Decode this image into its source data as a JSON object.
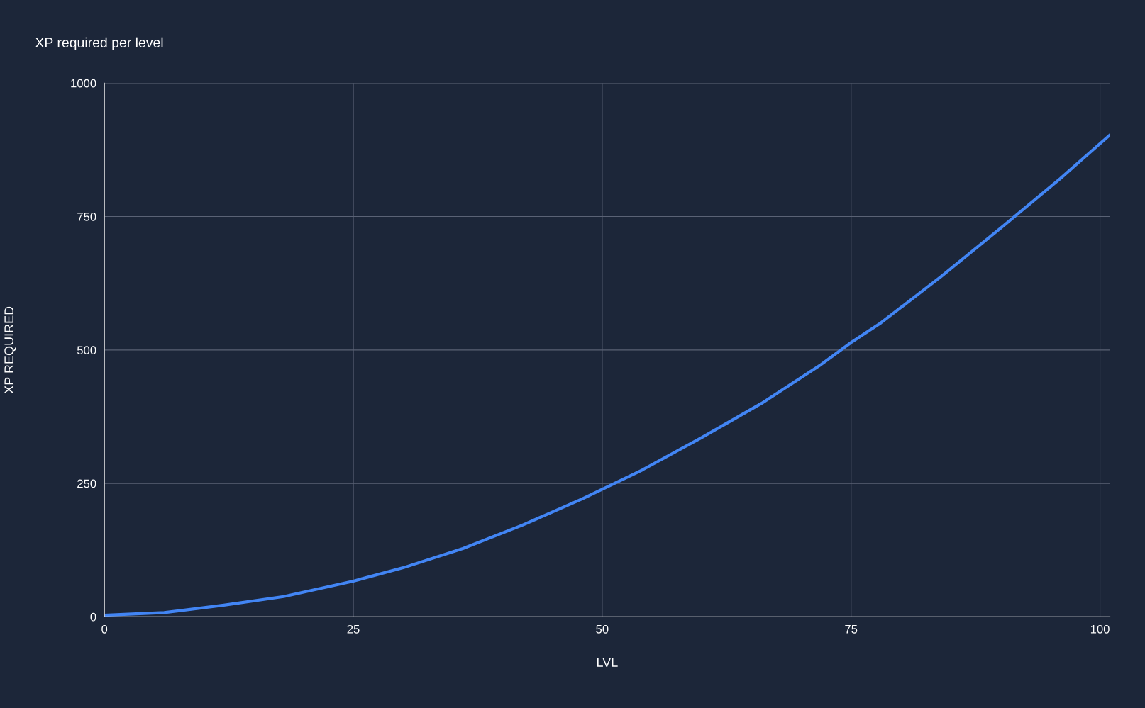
{
  "chart_data": {
    "type": "line",
    "title": "XP required per level",
    "xlabel": "LVL",
    "ylabel": "XP REQUIRED",
    "x": [
      0,
      6,
      12,
      18,
      25,
      30,
      36,
      42,
      48,
      54,
      60,
      66,
      72,
      75,
      78,
      84,
      90,
      96,
      101
    ],
    "series": [
      {
        "color": "#4285f4",
        "values": [
          3,
          8,
          22,
          38,
          67,
          92,
          128,
          172,
          221,
          275,
          336,
          400,
          473,
          514,
          551,
          637,
          728,
          821,
          903
        ]
      }
    ],
    "xlim": [
      0,
      101
    ],
    "xticks": [
      0,
      25,
      50,
      75,
      100
    ],
    "ylim": [
      0,
      1000
    ],
    "yticks": [
      0,
      250,
      500,
      750,
      1000
    ],
    "grid": true,
    "legend": false,
    "marker": "none",
    "line_style": "solid"
  }
}
